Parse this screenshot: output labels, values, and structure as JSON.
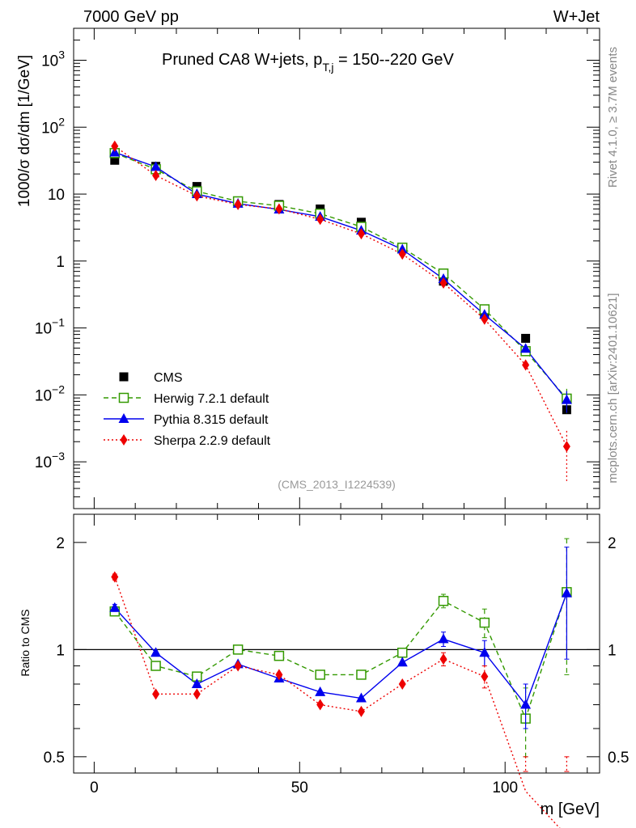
{
  "header": {
    "left": "7000 GeV pp",
    "right": "W+Jet"
  },
  "side_labels": {
    "rivet": "Rivet 4.1.0, ≥ 3.7M events",
    "mcplots": "mcplots.cern.ch [arXiv:2401.10621]"
  },
  "chart_data": {
    "type": "scatter",
    "title_main": "Pruned CA8 W+jets, p",
    "title_sub": "T,j",
    "title_tail": " = 150--220 GeV",
    "analysis_id": "(CMS_2013_I1224539)",
    "xlabel": "m [GeV]",
    "ylabel": "1000/σ  dσ/dm [1/GeV]",
    "ratio_ylabel": "Ratio to CMS",
    "xlim": [
      -5,
      123
    ],
    "ylim": [
      0.0002,
      3000
    ],
    "yscale": "log",
    "ratio_ylim": [
      0.45,
      2.4
    ],
    "ratio_yscale": "log",
    "x_ticks": [
      0,
      50,
      100
    ],
    "y_ticks": [
      {
        "value": 0.001,
        "base": "10",
        "exp": "−3"
      },
      {
        "value": 0.01,
        "base": "10",
        "exp": "−2"
      },
      {
        "value": 0.1,
        "base": "10",
        "exp": "−1"
      },
      {
        "value": 1,
        "base": "1",
        "exp": ""
      },
      {
        "value": 10,
        "base": "10",
        "exp": ""
      },
      {
        "value": 100,
        "base": "10",
        "exp": "2"
      },
      {
        "value": 1000,
        "base": "10",
        "exp": "3"
      }
    ],
    "ratio_ticks": [
      {
        "value": 0.5,
        "label": "0.5"
      },
      {
        "value": 1,
        "label": "1"
      },
      {
        "value": 2,
        "label": "2"
      }
    ],
    "x": [
      5,
      15,
      25,
      35,
      45,
      55,
      65,
      75,
      85,
      95,
      105,
      115
    ],
    "series": [
      {
        "name": "CMS",
        "style": "data",
        "color": "#000000",
        "values": [
          32,
          26,
          13,
          7.8,
          7.0,
          6.0,
          3.8,
          1.6,
          0.5,
          0.16,
          0.07,
          0.006
        ],
        "errors": [
          0,
          0,
          0,
          0,
          0,
          0,
          0,
          0,
          0,
          0,
          0,
          0.0008
        ]
      },
      {
        "name": "Herwig 7.2.1 default",
        "style": "dashed",
        "marker": "open-square",
        "color": "#339900",
        "values": [
          41,
          23.5,
          11,
          7.8,
          6.7,
          5.1,
          3.25,
          1.58,
          0.65,
          0.19,
          0.045,
          0.0088
        ],
        "errors": [
          0,
          0,
          0,
          0,
          0,
          0,
          0,
          0,
          0.03,
          0.012,
          0.006,
          0.0035
        ],
        "ratio": [
          1.28,
          0.9,
          0.84,
          1.0,
          0.96,
          0.85,
          0.85,
          0.98,
          1.37,
          1.19,
          0.64,
          1.45
        ],
        "ratio_errors": [
          0.03,
          0.01,
          0.01,
          0.01,
          0.01,
          0.01,
          0.01,
          0.02,
          0.06,
          0.11,
          0.14,
          0.6
        ]
      },
      {
        "name": "Pythia 8.315 default",
        "style": "solid",
        "marker": "triangle",
        "color": "#0000ee",
        "values": [
          42,
          25.5,
          10,
          7.2,
          5.9,
          4.6,
          2.85,
          1.49,
          0.54,
          0.158,
          0.049,
          0.0084
        ],
        "errors": [
          0,
          0,
          0,
          0,
          0,
          0,
          0,
          0,
          0.02,
          0.01,
          0.005,
          0.003
        ],
        "ratio": [
          1.31,
          0.98,
          0.8,
          0.91,
          0.83,
          0.76,
          0.73,
          0.92,
          1.07,
          0.98,
          0.7,
          1.44
        ],
        "ratio_errors": [
          0.03,
          0.01,
          0.01,
          0.01,
          0.01,
          0.01,
          0.01,
          0.02,
          0.05,
          0.08,
          0.1,
          0.5
        ]
      },
      {
        "name": "Sherpa 2.2.9 default",
        "style": "dotted",
        "marker": "diamond",
        "color": "#ee0000",
        "values": [
          52,
          19,
          9.4,
          7.0,
          6.0,
          4.2,
          2.55,
          1.27,
          0.47,
          0.135,
          0.028,
          0.0017
        ],
        "errors": [
          0,
          0,
          0,
          0,
          0,
          0,
          0,
          0,
          0.02,
          0.01,
          0.004,
          0.0012
        ],
        "ratio": [
          1.6,
          0.75,
          0.75,
          0.9,
          0.85,
          0.7,
          0.67,
          0.8,
          0.94,
          0.84,
          0.4,
          0.3
        ],
        "ratio_errors": [
          0.03,
          0.01,
          0.01,
          0.01,
          0.01,
          0.01,
          0.01,
          0.02,
          0.04,
          0.06,
          0.1,
          0.2
        ]
      }
    ]
  }
}
